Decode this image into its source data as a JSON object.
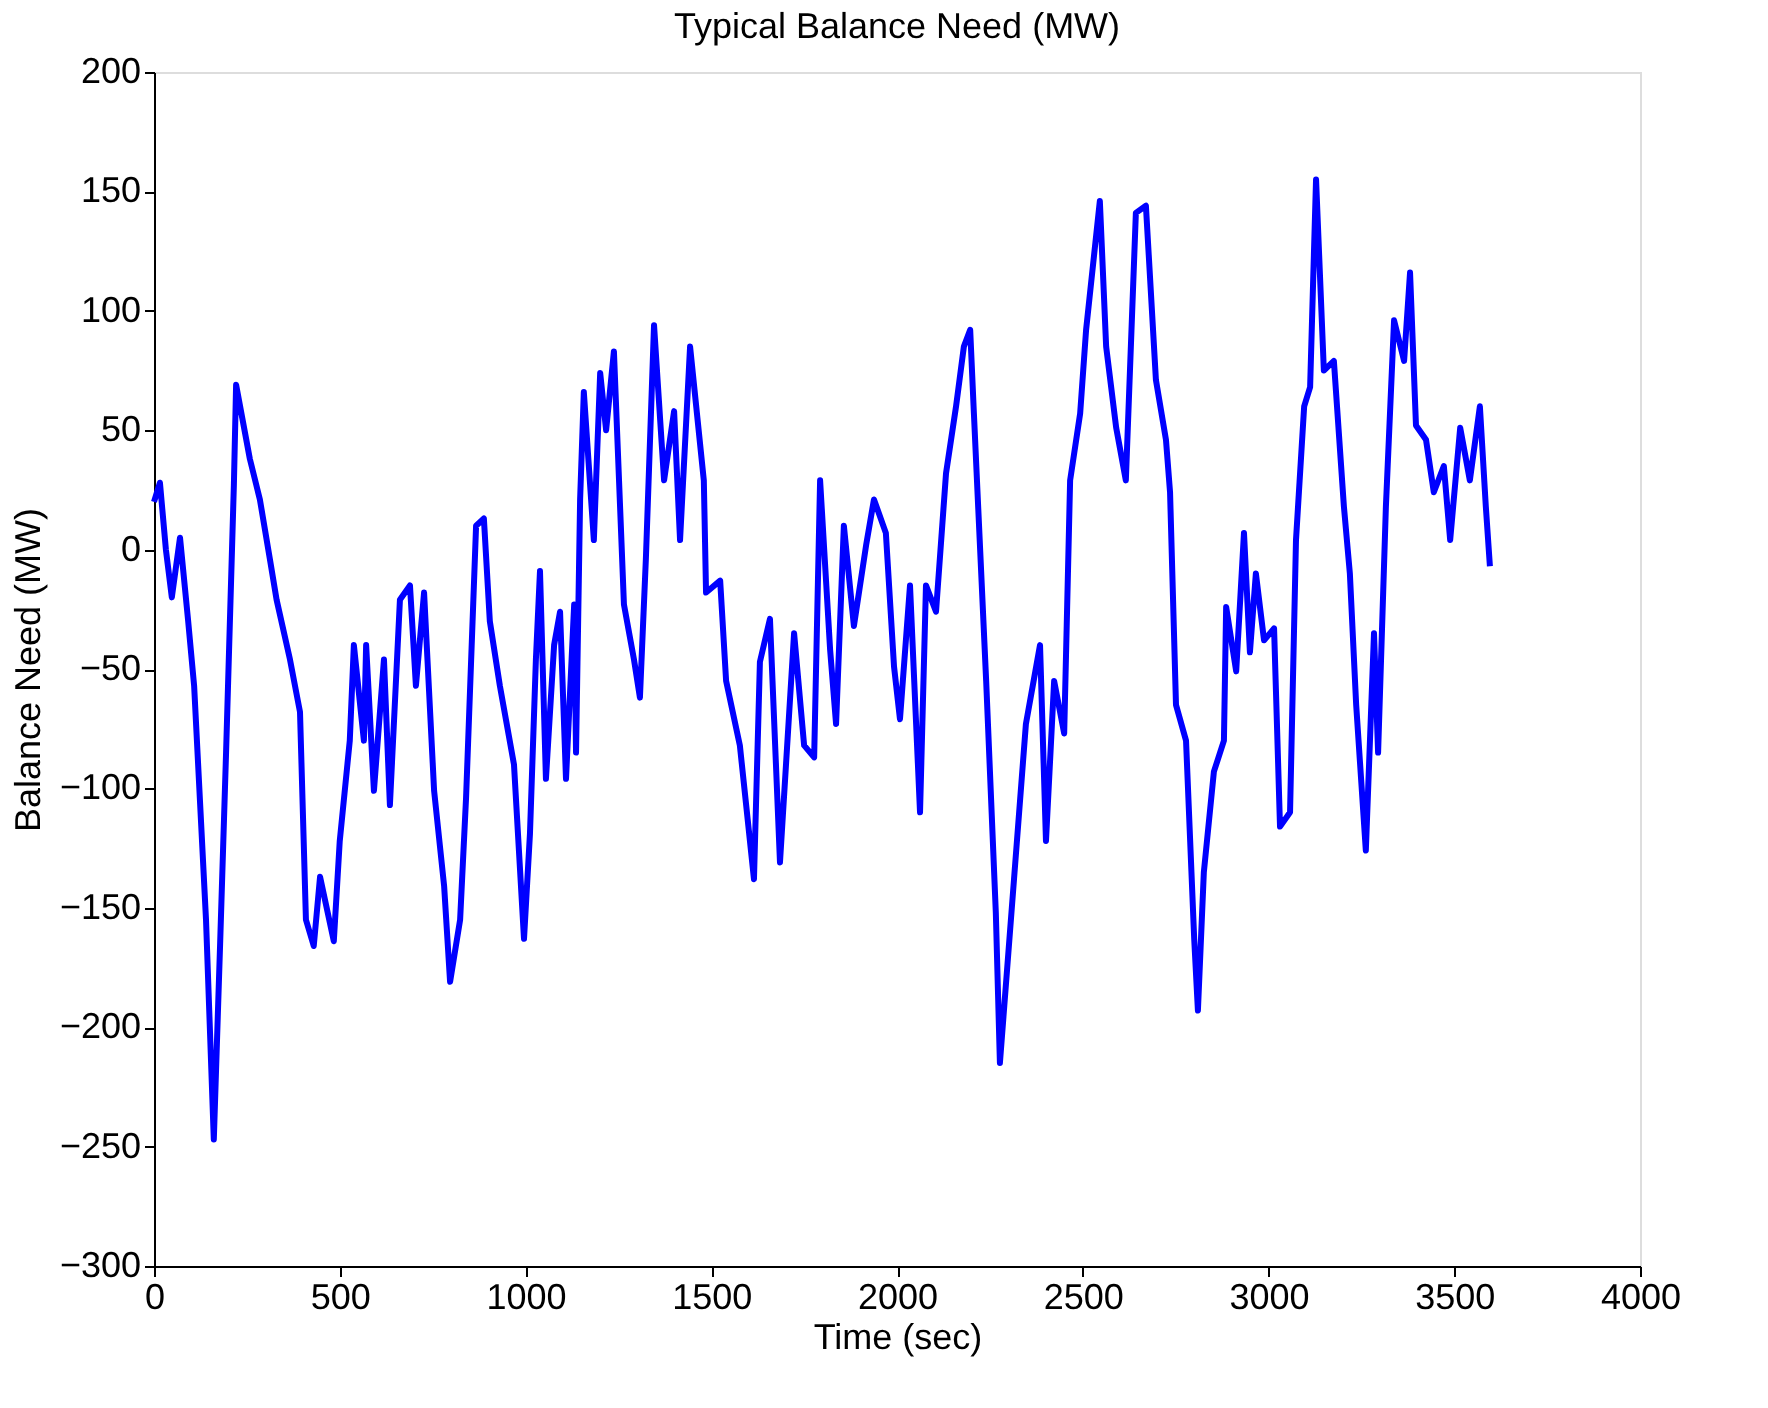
{
  "chart_data": {
    "type": "line",
    "title": "Typical Balance Need (MW)",
    "xlabel": "Time (sec)",
    "ylabel": "Balance Need (MW)",
    "xlim": [
      0,
      4000
    ],
    "xticks": [
      0,
      500,
      1000,
      1500,
      2000,
      2500,
      3000,
      3500,
      4000
    ],
    "ylim": [
      -300,
      200
    ],
    "yticks": [
      -300,
      -250,
      -200,
      -150,
      -100,
      -50,
      0,
      50,
      100,
      150,
      200
    ],
    "grid": false,
    "marker": "none",
    "line_style": "solid",
    "series": [
      {
        "color": "#0000ff",
        "x": [
          0,
          16,
          32,
          48,
          70,
          92,
          108,
          140,
          161,
          178,
          194,
          215,
          221,
          258,
          285,
          312,
          330,
          366,
          393,
          409,
          430,
          447,
          484,
          500,
          527,
          538,
          565,
          571,
          592,
          619,
          635,
          662,
          689,
          705,
          727,
          754,
          781,
          797,
          824,
          840,
          867,
          888,
          904,
          931,
          969,
          996,
          1012,
          1028,
          1039,
          1055,
          1077,
          1093,
          1109,
          1131,
          1136,
          1147,
          1157,
          1184,
          1201,
          1217,
          1238,
          1265,
          1292,
          1308,
          1324,
          1346,
          1373,
          1400,
          1416,
          1443,
          1480,
          1486,
          1524,
          1540,
          1577,
          1615,
          1631,
          1658,
          1685,
          1723,
          1750,
          1777,
          1793,
          1820,
          1836,
          1857,
          1884,
          1917,
          1938,
          1970,
          1992,
          2008,
          2035,
          2062,
          2078,
          2105,
          2132,
          2159,
          2180,
          2197,
          2207,
          2240,
          2266,
          2277,
          2315,
          2347,
          2385,
          2401,
          2423,
          2450,
          2466,
          2493,
          2509,
          2546,
          2563,
          2590,
          2616,
          2643,
          2670,
          2697,
          2724,
          2735,
          2751,
          2778,
          2800,
          2810,
          2826,
          2853,
          2880,
          2886,
          2913,
          2934,
          2950,
          2966,
          2988,
          3015,
          3031,
          3058,
          3074,
          3096,
          3112,
          3128,
          3149,
          3176,
          3203,
          3219,
          3236,
          3262,
          3284,
          3295,
          3316,
          3338,
          3365,
          3381,
          3397,
          3424,
          3445,
          3472,
          3489,
          3516,
          3542,
          3569,
          3585,
          3596
        ],
        "values": [
          20,
          28,
          0,
          -20,
          5,
          -30,
          -57,
          -155,
          -247,
          -165,
          -85,
          27,
          69,
          38,
          21,
          -4,
          -21,
          -46,
          -68,
          -155,
          -166,
          -137,
          -164,
          -122,
          -80,
          -40,
          -80,
          -40,
          -101,
          -46,
          -107,
          -21,
          -15,
          -57,
          -18,
          -101,
          -141,
          -181,
          -155,
          -104,
          10,
          13,
          -30,
          -57,
          -90,
          -163,
          -119,
          -46,
          -9,
          -96,
          -40,
          -26,
          -96,
          -23,
          -85,
          21,
          66,
          4,
          74,
          50,
          83,
          -23,
          -46,
          -62,
          -4,
          94,
          29,
          58,
          4,
          85,
          29,
          -18,
          -13,
          -55,
          -82,
          -138,
          -47,
          -29,
          -131,
          -35,
          -82,
          -87,
          29,
          -42,
          -73,
          10,
          -32,
          2,
          21,
          7,
          -49,
          -71,
          -15,
          -110,
          -15,
          -26,
          32,
          60,
          85,
          92,
          57,
          -55,
          -152,
          -215,
          -138,
          -73,
          -40,
          -122,
          -55,
          -77,
          29,
          57,
          92,
          146,
          85,
          51,
          29,
          141,
          144,
          71,
          46,
          24,
          -65,
          -80,
          -163,
          -193,
          -135,
          -93,
          -80,
          -24,
          -51,
          7,
          -43,
          -10,
          -38,
          -33,
          -116,
          -110,
          4,
          60,
          68,
          155,
          75,
          79,
          18,
          -10,
          -65,
          -126,
          -35,
          -85,
          18,
          96,
          79,
          116,
          52,
          46,
          24,
          35,
          4,
          51,
          29,
          60,
          18,
          -7
        ]
      }
    ]
  }
}
